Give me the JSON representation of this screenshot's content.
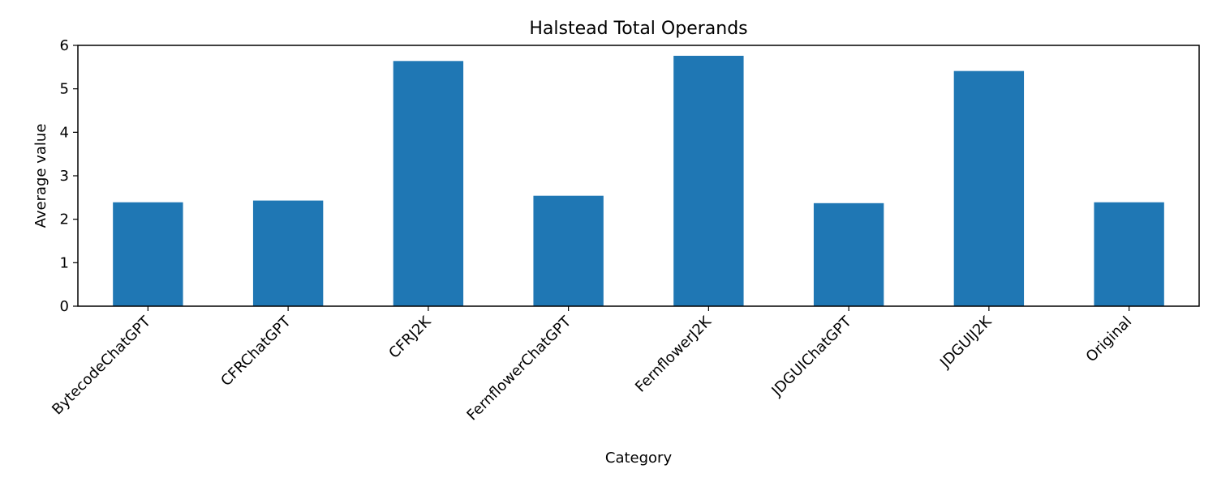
{
  "chart_data": {
    "type": "bar",
    "title": "Halstead Total Operands",
    "xlabel": "Category",
    "ylabel": "Average value",
    "categories": [
      "BytecodeChatGPT",
      "CFRChatGPT",
      "CFRJ2K",
      "FernflowerChatGPT",
      "FernflowerJ2K",
      "JDGUIChatGPT",
      "JDGUIJ2K",
      "Original"
    ],
    "values": [
      2.39,
      2.43,
      5.64,
      2.54,
      5.76,
      2.37,
      5.41,
      2.39
    ],
    "ylim": [
      0,
      6
    ],
    "yticks": [
      0,
      1,
      2,
      3,
      4,
      5,
      6
    ],
    "grid": false,
    "legend": "none",
    "bar_color": "#1f77b4"
  }
}
